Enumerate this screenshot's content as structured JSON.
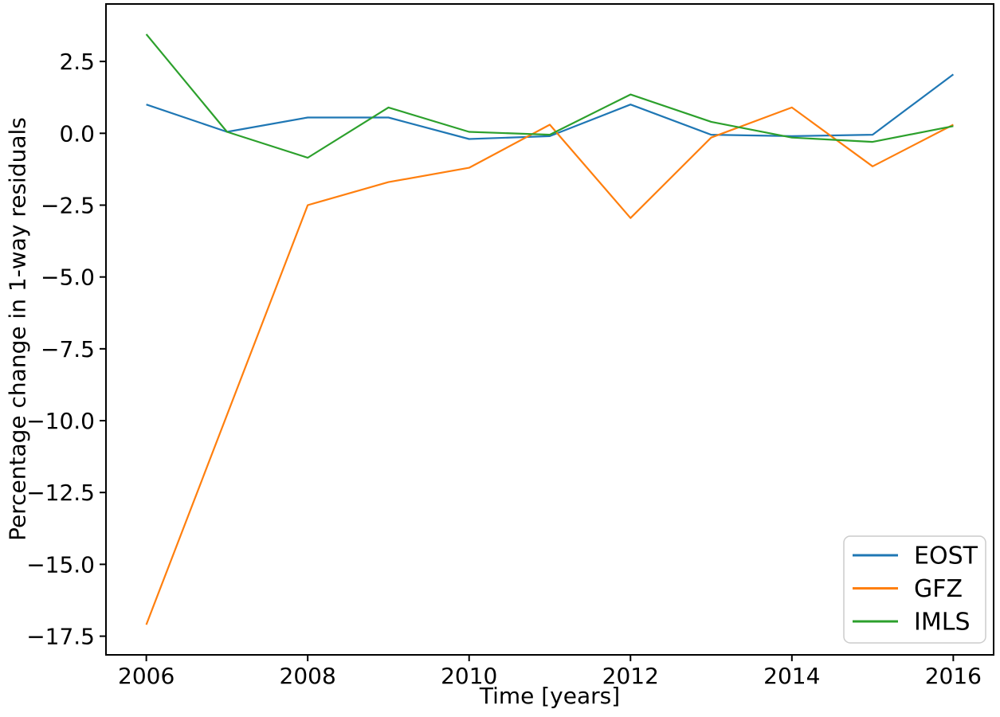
{
  "chart_data": {
    "type": "line",
    "title": "",
    "xlabel": "Time [years]",
    "ylabel": "Percentage change in 1-way residuals",
    "xlim": [
      2005.5,
      2016.5
    ],
    "ylim": [
      -18.15,
      4.5
    ],
    "grid": false,
    "legend_position": "lower right",
    "x_ticks": [
      2006,
      2008,
      2010,
      2012,
      2014,
      2016
    ],
    "x_tick_labels": [
      "2006",
      "2008",
      "2010",
      "2012",
      "2014",
      "2016"
    ],
    "y_ticks": [
      2.5,
      0.0,
      -2.5,
      -5.0,
      -7.5,
      -10.0,
      -12.5,
      -15.0,
      -17.5
    ],
    "y_tick_labels": [
      "2.5",
      "0.0",
      "−2.5",
      "−5.0",
      "−7.5",
      "−10.0",
      "−12.5",
      "−15.0",
      "−17.5"
    ],
    "series": [
      {
        "name": "EOST",
        "color": "#1f77b4",
        "x": [
          2006,
          2007,
          2008,
          2009,
          2010,
          2011,
          2012,
          2013,
          2014,
          2015,
          2016
        ],
        "values": [
          1.0,
          0.05,
          0.55,
          0.55,
          -0.2,
          -0.1,
          1.0,
          -0.05,
          -0.1,
          -0.05,
          2.05
        ]
      },
      {
        "name": "GFZ",
        "color": "#ff7f0e",
        "x": [
          2006,
          2008,
          2009,
          2010,
          2011,
          2012,
          2013,
          2014,
          2015,
          2016
        ],
        "values": [
          -17.1,
          -2.5,
          -1.7,
          -1.2,
          0.3,
          -2.95,
          -0.15,
          0.9,
          -1.15,
          0.3
        ]
      },
      {
        "name": "IMLS",
        "color": "#2ca02c",
        "x": [
          2006,
          2007,
          2008,
          2009,
          2010,
          2011,
          2012,
          2013,
          2014,
          2015,
          2016
        ],
        "values": [
          3.45,
          0.05,
          -0.85,
          0.9,
          0.05,
          -0.05,
          1.35,
          0.4,
          -0.15,
          -0.3,
          0.25
        ]
      }
    ]
  }
}
